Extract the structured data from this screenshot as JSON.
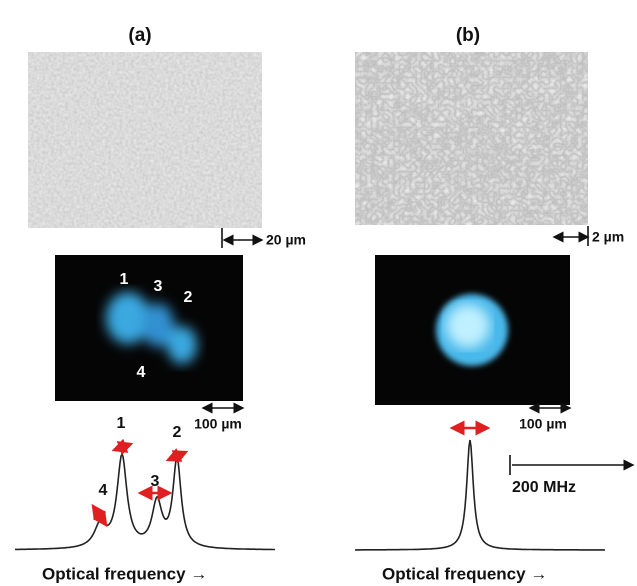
{
  "panels": [
    {
      "label": "(a)",
      "scale_top": "20 µm",
      "spots": [
        "1",
        "3",
        "2",
        "4"
      ],
      "scale_mid": "100 µm",
      "peaks": [
        "1",
        "2",
        "3",
        "4"
      ],
      "x_label": "Optical frequency  →"
    },
    {
      "label": "(b)",
      "scale_top": "2 µm",
      "scale_mid": "100 µm",
      "width_label": "200 MHz",
      "x_label": "Optical frequency  →"
    }
  ]
}
